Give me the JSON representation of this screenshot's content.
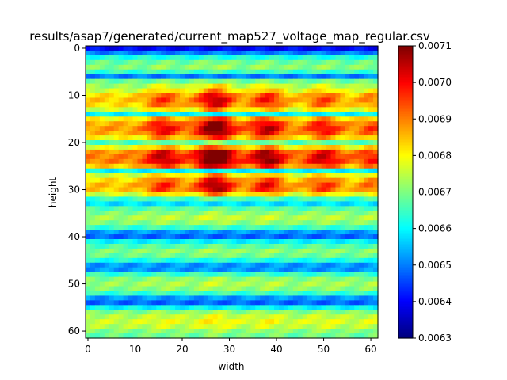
{
  "chart_data": {
    "type": "heatmap",
    "title": "results/asap7/generated/current_map527_voltage_map_regular.csv",
    "xlabel": "width",
    "ylabel": "height",
    "rows": 62,
    "cols": 62,
    "x_ticks": [
      "0",
      "10",
      "20",
      "30",
      "40",
      "50",
      "60"
    ],
    "y_ticks": [
      "0",
      "10",
      "20",
      "30",
      "40",
      "50",
      "60"
    ],
    "colormap": "jet",
    "vmin": 0.0063,
    "vmax": 0.0071,
    "colorbar_ticks": [
      "0.0063",
      "0.0064",
      "0.0065",
      "0.0066",
      "0.0067",
      "0.0068",
      "0.0069",
      "0.0070",
      "0.0071"
    ],
    "row_profile": [
      0.0064,
      0.0065,
      0.00662,
      0.00668,
      0.0067,
      0.00664,
      0.0065,
      0.00668,
      0.00672,
      0.00676,
      0.00682,
      0.00684,
      0.00682,
      0.00676,
      0.0066,
      0.0068,
      0.00686,
      0.00688,
      0.00686,
      0.0068,
      0.00666,
      0.00678,
      0.00688,
      0.0069,
      0.0069,
      0.00684,
      0.0066,
      0.00676,
      0.00682,
      0.00685,
      0.00684,
      0.00676,
      0.00664,
      0.00658,
      0.00666,
      0.0067,
      0.00673,
      0.0067,
      0.00664,
      0.00652,
      0.00648,
      0.0066,
      0.00666,
      0.0067,
      0.00668,
      0.00662,
      0.00652,
      0.00652,
      0.00664,
      0.0067,
      0.00672,
      0.0067,
      0.00664,
      0.00652,
      0.00648,
      0.0066,
      0.0067,
      0.00674,
      0.00676,
      0.00674,
      0.0067,
      0.00668
    ],
    "column_peaks": [
      {
        "center": 16,
        "width": 3.5,
        "strength": 0.55
      },
      {
        "center": 27,
        "width": 4.0,
        "strength": 1.0
      },
      {
        "center": 38,
        "width": 3.5,
        "strength": 0.7
      },
      {
        "center": 50,
        "width": 3.5,
        "strength": 0.5
      },
      {
        "center": 60,
        "width": 2.5,
        "strength": 0.3
      }
    ],
    "hot_rows": {
      "from": 8,
      "to": 32,
      "gain": 0.00028
    },
    "min_value_approx": 0.0063,
    "max_value_approx": 0.0071
  }
}
